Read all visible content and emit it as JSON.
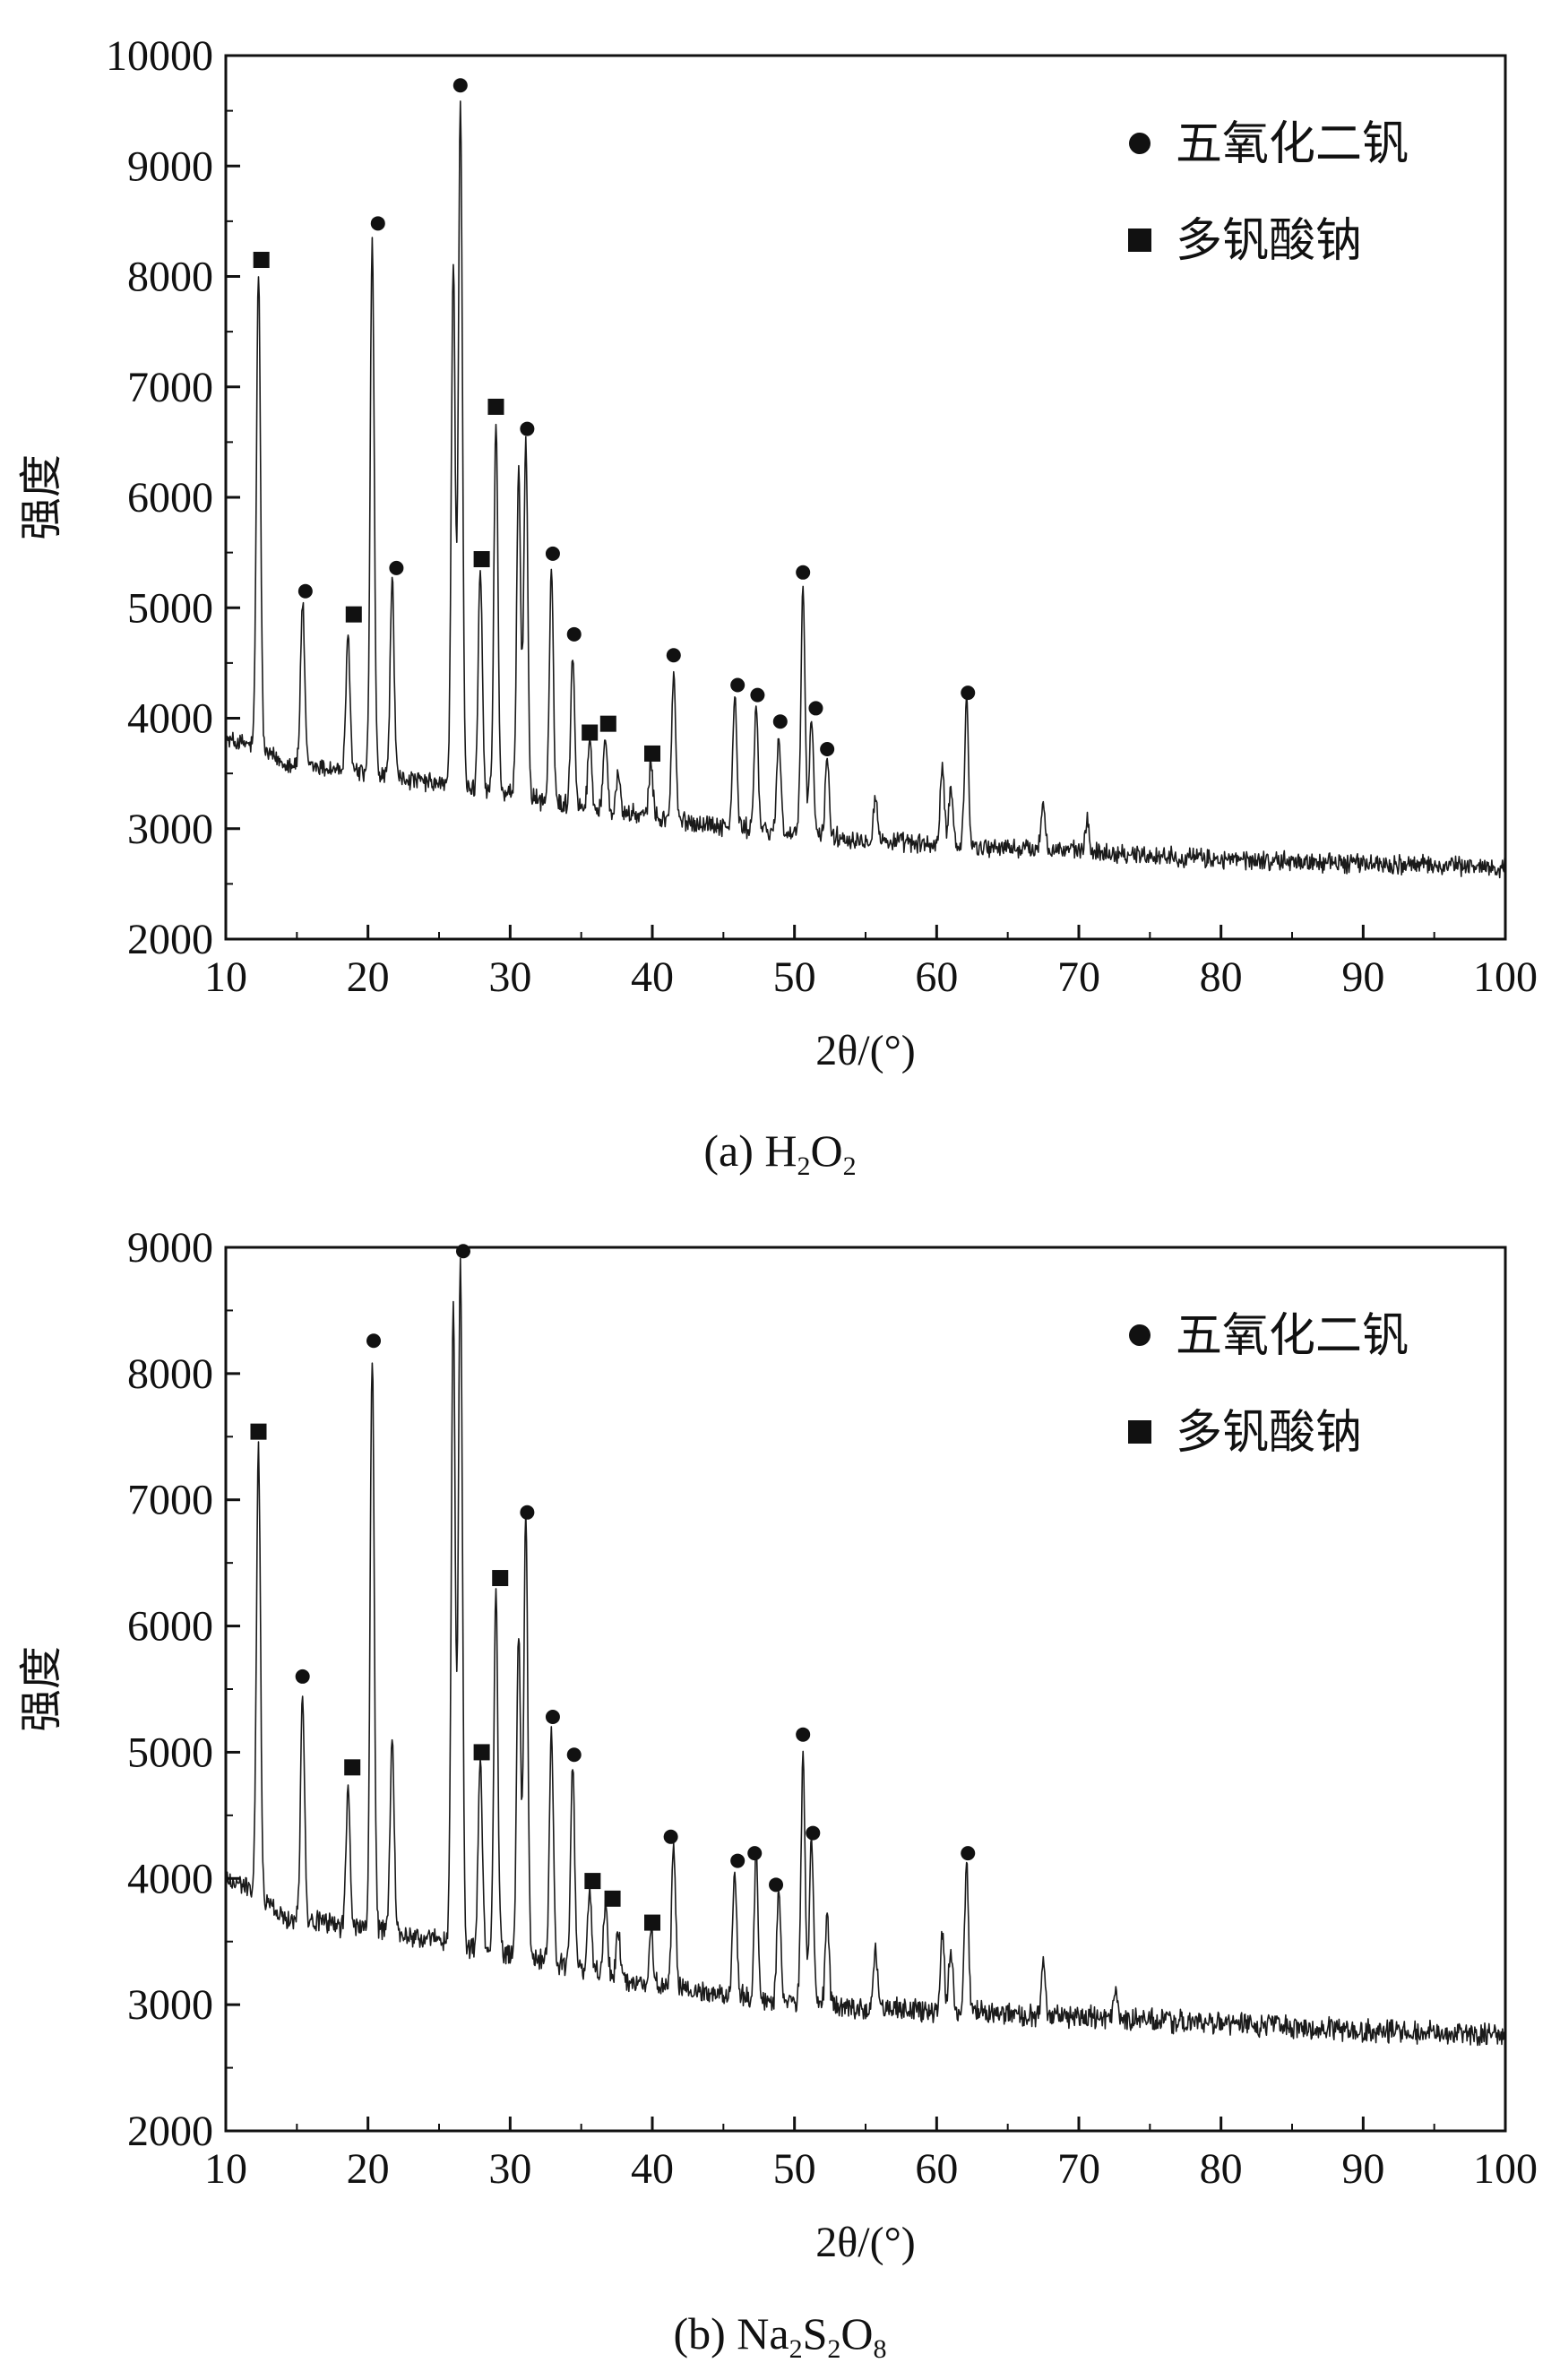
{
  "chart_data": [
    {
      "type": "line",
      "panel_caption": {
        "prefix": "(a) ",
        "formula": [
          [
            "H",
            "2"
          ],
          [
            "O",
            "2"
          ]
        ]
      },
      "xlabel": "2θ/(°)",
      "ylabel": "强度",
      "xlim": [
        10,
        100
      ],
      "ylim": [
        2000,
        10000
      ],
      "xticks": [
        10,
        20,
        30,
        40,
        50,
        60,
        70,
        80,
        90,
        100
      ],
      "yticks": [
        2000,
        3000,
        4000,
        5000,
        6000,
        7000,
        8000,
        9000,
        10000
      ],
      "legend_position": "top-right",
      "legend": [
        {
          "marker": "circle",
          "label": "五氧化二钒"
        },
        {
          "marker": "square",
          "label": "多钒酸钠"
        }
      ],
      "baseline": [
        [
          10,
          3800
        ],
        [
          12,
          3750
        ],
        [
          14,
          3600
        ],
        [
          20,
          3500
        ],
        [
          30,
          3300
        ],
        [
          40,
          3100
        ],
        [
          50,
          2950
        ],
        [
          60,
          2850
        ],
        [
          70,
          2800
        ],
        [
          80,
          2720
        ],
        [
          100,
          2650
        ]
      ],
      "peaks": [
        {
          "x": 12.3,
          "y": 8050
        },
        {
          "x": 15.4,
          "y": 5050
        },
        {
          "x": 18.6,
          "y": 4750
        },
        {
          "x": 20.3,
          "y": 8300
        },
        {
          "x": 21.7,
          "y": 5250
        },
        {
          "x": 26.0,
          "y": 8100
        },
        {
          "x": 26.5,
          "y": 9600
        },
        {
          "x": 27.9,
          "y": 5400
        },
        {
          "x": 29.0,
          "y": 6700
        },
        {
          "x": 30.6,
          "y": 6300
        },
        {
          "x": 31.1,
          "y": 6500
        },
        {
          "x": 32.9,
          "y": 5300
        },
        {
          "x": 34.4,
          "y": 4600
        },
        {
          "x": 35.6,
          "y": 3800
        },
        {
          "x": 36.7,
          "y": 3850
        },
        {
          "x": 37.6,
          "y": 3500
        },
        {
          "x": 39.9,
          "y": 3600
        },
        {
          "x": 41.5,
          "y": 4400
        },
        {
          "x": 45.8,
          "y": 4200
        },
        {
          "x": 47.3,
          "y": 4100
        },
        {
          "x": 48.9,
          "y": 3850
        },
        {
          "x": 50.6,
          "y": 5200
        },
        {
          "x": 51.2,
          "y": 4000
        },
        {
          "x": 52.3,
          "y": 3650
        },
        {
          "x": 55.7,
          "y": 3300
        },
        {
          "x": 60.4,
          "y": 3550
        },
        {
          "x": 61.0,
          "y": 3400
        },
        {
          "x": 62.1,
          "y": 4150
        },
        {
          "x": 67.5,
          "y": 3250
        },
        {
          "x": 70.6,
          "y": 3050
        }
      ],
      "markers": [
        {
          "type": "square",
          "x": 12.5,
          "y": 8150
        },
        {
          "type": "circle",
          "x": 15.6,
          "y": 5150
        },
        {
          "type": "square",
          "x": 19.0,
          "y": 4940
        },
        {
          "type": "circle",
          "x": 20.7,
          "y": 8480
        },
        {
          "type": "circle",
          "x": 22.0,
          "y": 5360
        },
        {
          "type": "circle",
          "x": 26.5,
          "y": 9730
        },
        {
          "type": "square",
          "x": 28.0,
          "y": 5440
        },
        {
          "type": "square",
          "x": 29.0,
          "y": 6820
        },
        {
          "type": "circle",
          "x": 31.2,
          "y": 6620
        },
        {
          "type": "circle",
          "x": 33.0,
          "y": 5490
        },
        {
          "type": "circle",
          "x": 34.5,
          "y": 4760
        },
        {
          "type": "square",
          "x": 35.6,
          "y": 3870
        },
        {
          "type": "square",
          "x": 36.9,
          "y": 3950
        },
        {
          "type": "square",
          "x": 40.0,
          "y": 3680
        },
        {
          "type": "circle",
          "x": 41.5,
          "y": 4570
        },
        {
          "type": "circle",
          "x": 46.0,
          "y": 4300
        },
        {
          "type": "circle",
          "x": 47.4,
          "y": 4210
        },
        {
          "type": "circle",
          "x": 49.0,
          "y": 3970
        },
        {
          "type": "circle",
          "x": 50.6,
          "y": 5320
        },
        {
          "type": "circle",
          "x": 51.5,
          "y": 4090
        },
        {
          "type": "circle",
          "x": 52.3,
          "y": 3720
        },
        {
          "type": "circle",
          "x": 62.2,
          "y": 4230
        }
      ]
    },
    {
      "type": "line",
      "panel_caption": {
        "prefix": "(b) ",
        "formula": [
          [
            "Na",
            "2"
          ],
          [
            "S",
            "2"
          ],
          [
            "O",
            "8"
          ]
        ]
      },
      "xlabel": "2θ/(°)",
      "ylabel": "强度",
      "xlim": [
        10,
        100
      ],
      "ylim": [
        2000,
        9000
      ],
      "xticks": [
        10,
        20,
        30,
        40,
        50,
        60,
        70,
        80,
        90,
        100
      ],
      "yticks": [
        2000,
        3000,
        4000,
        5000,
        6000,
        7000,
        8000,
        9000
      ],
      "legend_position": "top-right",
      "legend": [
        {
          "marker": "circle",
          "label": "五氧化二钒"
        },
        {
          "marker": "square",
          "label": "多钒酸钠"
        }
      ],
      "baseline": [
        [
          10,
          4000
        ],
        [
          12,
          3900
        ],
        [
          14,
          3700
        ],
        [
          20,
          3600
        ],
        [
          30,
          3400
        ],
        [
          40,
          3150
        ],
        [
          50,
          3000
        ],
        [
          60,
          2950
        ],
        [
          70,
          2900
        ],
        [
          80,
          2850
        ],
        [
          100,
          2750
        ]
      ],
      "peaks": [
        {
          "x": 12.3,
          "y": 7400
        },
        {
          "x": 15.4,
          "y": 5450
        },
        {
          "x": 18.6,
          "y": 4700
        },
        {
          "x": 20.3,
          "y": 8150
        },
        {
          "x": 21.7,
          "y": 5150
        },
        {
          "x": 26.0,
          "y": 8550
        },
        {
          "x": 26.5,
          "y": 8900
        },
        {
          "x": 27.9,
          "y": 4950
        },
        {
          "x": 29.0,
          "y": 6250
        },
        {
          "x": 30.6,
          "y": 5950
        },
        {
          "x": 31.1,
          "y": 6850
        },
        {
          "x": 32.9,
          "y": 5200
        },
        {
          "x": 34.4,
          "y": 4900
        },
        {
          "x": 35.6,
          "y": 3900
        },
        {
          "x": 36.7,
          "y": 3800
        },
        {
          "x": 37.6,
          "y": 3600
        },
        {
          "x": 39.9,
          "y": 3600
        },
        {
          "x": 41.5,
          "y": 4250
        },
        {
          "x": 45.8,
          "y": 4100
        },
        {
          "x": 47.3,
          "y": 4150
        },
        {
          "x": 48.9,
          "y": 3900
        },
        {
          "x": 50.6,
          "y": 4950
        },
        {
          "x": 51.2,
          "y": 4300
        },
        {
          "x": 52.3,
          "y": 3700
        },
        {
          "x": 55.7,
          "y": 3450
        },
        {
          "x": 60.4,
          "y": 3550
        },
        {
          "x": 61.0,
          "y": 3450
        },
        {
          "x": 62.1,
          "y": 4100
        },
        {
          "x": 67.5,
          "y": 3300
        },
        {
          "x": 72.6,
          "y": 3150
        }
      ],
      "markers": [
        {
          "type": "square",
          "x": 12.3,
          "y": 7540
        },
        {
          "type": "circle",
          "x": 15.4,
          "y": 5600
        },
        {
          "type": "square",
          "x": 18.9,
          "y": 4880
        },
        {
          "type": "circle",
          "x": 20.4,
          "y": 8260
        },
        {
          "type": "circle",
          "x": 26.7,
          "y": 8970
        },
        {
          "type": "square",
          "x": 28.0,
          "y": 5000
        },
        {
          "type": "square",
          "x": 29.3,
          "y": 6380
        },
        {
          "type": "circle",
          "x": 31.2,
          "y": 6900
        },
        {
          "type": "circle",
          "x": 33.0,
          "y": 5280
        },
        {
          "type": "circle",
          "x": 34.5,
          "y": 4980
        },
        {
          "type": "square",
          "x": 35.8,
          "y": 3980
        },
        {
          "type": "square",
          "x": 37.2,
          "y": 3840
        },
        {
          "type": "square",
          "x": 40.0,
          "y": 3650
        },
        {
          "type": "circle",
          "x": 41.3,
          "y": 4330
        },
        {
          "type": "circle",
          "x": 46.0,
          "y": 4140
        },
        {
          "type": "circle",
          "x": 47.2,
          "y": 4200
        },
        {
          "type": "circle",
          "x": 48.7,
          "y": 3950
        },
        {
          "type": "circle",
          "x": 50.6,
          "y": 5140
        },
        {
          "type": "circle",
          "x": 51.3,
          "y": 4360
        },
        {
          "type": "circle",
          "x": 62.2,
          "y": 4200
        }
      ]
    }
  ]
}
